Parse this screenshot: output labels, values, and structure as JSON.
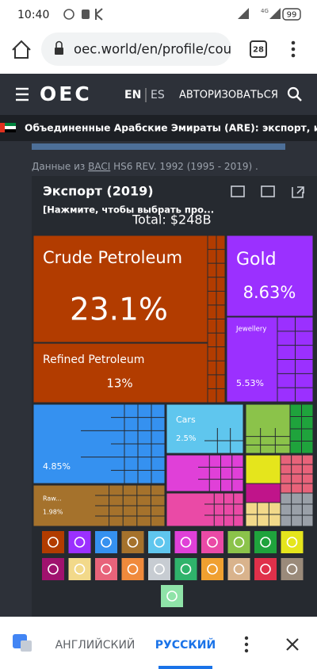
{
  "status_bar": {
    "time": "10:40",
    "network": "4G",
    "battery": "99"
  },
  "browser": {
    "url": "oec.world/en/profile/cou",
    "tab_count": "28"
  },
  "nav": {
    "logo": "OEC",
    "languages": [
      "EN",
      "ES"
    ],
    "login": "АВТОРИЗОВАТЬСЯ"
  },
  "profile_header": "Объединенные Арабские Эмираты (ARE): экспорт, импо...",
  "source": {
    "prefix": "Данные из",
    "link": "BACI",
    "suffix": "HS6 REV. 1992 (1995 - 2019) ."
  },
  "card": {
    "title": "Экспорт (2019)",
    "subtitle": "[Нажмите, чтобы выбрать про...",
    "total": "Total: $248B"
  },
  "treemap": {
    "tiles": [
      {
        "label": "Crude Petroleum",
        "share": "23.1%"
      },
      {
        "label": "Refined Petroleum",
        "share": "13%"
      },
      {
        "label": "Gold",
        "share": "8.63%"
      },
      {
        "label": "Jewellery",
        "share": "5.53%"
      },
      {
        "label": "Cars",
        "share": "2.5%"
      },
      {
        "share": "4.85%"
      },
      {
        "label": "Raw...",
        "share": "1.98%"
      }
    ]
  },
  "translate_bar": {
    "languages": [
      "АНГЛИЙСКИЙ",
      "РУССКИЙ"
    ]
  }
}
